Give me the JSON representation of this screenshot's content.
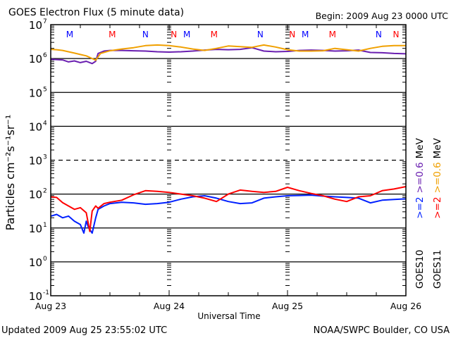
{
  "chart_data": {
    "type": "line",
    "title": "GOES Electron Flux (5 minute data)",
    "subtitle": "Begin: 2009 Aug 23 0000 UTC",
    "xlabel": "Universal Time",
    "ylabel": "Particles cm⁻²s⁻¹sr⁻¹",
    "x_range_days": [
      0,
      3
    ],
    "x_tick_labels": [
      "Aug 23",
      "Aug 24",
      "Aug 25",
      "Aug 26"
    ],
    "y_scale": "log",
    "ylim_exponents": [
      -1,
      7
    ],
    "y_tick_labels": [
      {
        "base": "10",
        "exp": "7"
      },
      {
        "base": "10",
        "exp": "6"
      },
      {
        "base": "10",
        "exp": "5"
      },
      {
        "base": "10",
        "exp": "4"
      },
      {
        "base": "10",
        "exp": "3"
      },
      {
        "base": "10",
        "exp": "2"
      },
      {
        "base": "10",
        "exp": "1"
      },
      {
        "base": "10",
        "exp": "0"
      },
      {
        "base": "10",
        "exp": "-1"
      }
    ],
    "dashed_threshold_exponent": 3,
    "markers": [
      {
        "label": "M",
        "color": "#0000ff",
        "day": 0.16
      },
      {
        "label": "M",
        "color": "#ff0000",
        "day": 0.52
      },
      {
        "label": "N",
        "color": "#0000ff",
        "day": 0.8
      },
      {
        "label": "N",
        "color": "#ff0000",
        "day": 1.04
      },
      {
        "label": "M",
        "color": "#0000ff",
        "day": 1.15
      },
      {
        "label": "M",
        "color": "#ff0000",
        "day": 1.38
      },
      {
        "label": "N",
        "color": "#0000ff",
        "day": 1.77
      },
      {
        "label": "N",
        "color": "#ff0000",
        "day": 2.04
      },
      {
        "label": "M",
        "color": "#0000ff",
        "day": 2.15
      },
      {
        "label": "M",
        "color": "#ff0000",
        "day": 2.38
      },
      {
        "label": "N",
        "color": "#0000ff",
        "day": 2.77
      },
      {
        "label": "N",
        "color": "#ff0000",
        "day": 3.04
      }
    ],
    "series": [
      {
        "name": "GOES10 >=0.6 MeV",
        "color": "#6a1fb0",
        "x_days": [
          0,
          0.05,
          0.1,
          0.15,
          0.2,
          0.25,
          0.3,
          0.35,
          0.38,
          0.4,
          0.45,
          0.5,
          0.6,
          0.7,
          0.8,
          0.9,
          1.0,
          1.1,
          1.2,
          1.3,
          1.4,
          1.5,
          1.6,
          1.7,
          1.8,
          1.9,
          2.0,
          2.1,
          2.2,
          2.3,
          2.4,
          2.5,
          2.6,
          2.7,
          2.8,
          2.9,
          3.0
        ],
        "log10_values": [
          5.98,
          5.97,
          5.96,
          5.9,
          5.93,
          5.88,
          5.92,
          5.85,
          5.92,
          6.15,
          6.22,
          6.24,
          6.24,
          6.23,
          6.22,
          6.2,
          6.19,
          6.2,
          6.22,
          6.25,
          6.27,
          6.26,
          6.27,
          6.32,
          6.22,
          6.2,
          6.21,
          6.24,
          6.25,
          6.24,
          6.22,
          6.23,
          6.25,
          6.18,
          6.17,
          6.15,
          6.14
        ]
      },
      {
        "name": "GOES11 >=0.6 MeV",
        "color": "#f0a000",
        "x_days": [
          0,
          0.05,
          0.1,
          0.15,
          0.2,
          0.25,
          0.3,
          0.35,
          0.38,
          0.42,
          0.5,
          0.6,
          0.7,
          0.8,
          0.9,
          1.0,
          1.1,
          1.2,
          1.3,
          1.4,
          1.5,
          1.6,
          1.7,
          1.8,
          1.9,
          2.0,
          2.1,
          2.2,
          2.3,
          2.4,
          2.5,
          2.6,
          2.7,
          2.8,
          2.9,
          3.0
        ],
        "log10_values": [
          6.27,
          6.26,
          6.24,
          6.2,
          6.16,
          6.12,
          6.08,
          6.0,
          5.95,
          6.15,
          6.23,
          6.28,
          6.32,
          6.38,
          6.4,
          6.38,
          6.34,
          6.28,
          6.24,
          6.3,
          6.37,
          6.35,
          6.33,
          6.4,
          6.34,
          6.26,
          6.22,
          6.22,
          6.23,
          6.3,
          6.26,
          6.22,
          6.3,
          6.36,
          6.38,
          6.38
        ]
      },
      {
        "name": "GOES10 >=2 MeV",
        "color": "#0020ff",
        "x_days": [
          0,
          0.05,
          0.1,
          0.15,
          0.2,
          0.25,
          0.28,
          0.3,
          0.32,
          0.35,
          0.38,
          0.4,
          0.45,
          0.5,
          0.6,
          0.7,
          0.8,
          0.9,
          1.0,
          1.1,
          1.2,
          1.3,
          1.4,
          1.5,
          1.6,
          1.7,
          1.8,
          1.9,
          2.0,
          2.1,
          2.2,
          2.3,
          2.4,
          2.5,
          2.6,
          2.7,
          2.8,
          2.9,
          3.0
        ],
        "log10_values": [
          1.35,
          1.4,
          1.3,
          1.35,
          1.2,
          1.1,
          0.85,
          1.2,
          1.0,
          0.85,
          1.3,
          1.55,
          1.65,
          1.72,
          1.76,
          1.74,
          1.7,
          1.72,
          1.76,
          1.85,
          1.92,
          1.95,
          1.88,
          1.78,
          1.72,
          1.74,
          1.88,
          1.92,
          1.95,
          1.96,
          1.97,
          1.94,
          1.92,
          1.9,
          1.88,
          1.74,
          1.82,
          1.84,
          1.86
        ]
      },
      {
        "name": "GOES11 >=2 MeV",
        "color": "#ff0000",
        "x_days": [
          0,
          0.05,
          0.1,
          0.15,
          0.2,
          0.25,
          0.3,
          0.33,
          0.35,
          0.38,
          0.4,
          0.45,
          0.5,
          0.6,
          0.7,
          0.8,
          0.9,
          1.0,
          1.1,
          1.2,
          1.3,
          1.4,
          1.5,
          1.6,
          1.7,
          1.8,
          1.9,
          2.0,
          2.1,
          2.2,
          2.3,
          2.4,
          2.5,
          2.6,
          2.7,
          2.8,
          2.9,
          3.0
        ],
        "log10_values": [
          1.92,
          1.9,
          1.75,
          1.65,
          1.55,
          1.6,
          1.45,
          0.9,
          1.5,
          1.65,
          1.58,
          1.72,
          1.76,
          1.82,
          1.98,
          2.1,
          2.08,
          2.05,
          2.0,
          1.95,
          1.88,
          1.78,
          2.0,
          2.12,
          2.08,
          2.05,
          2.08,
          2.2,
          2.1,
          2.02,
          1.95,
          1.85,
          1.78,
          1.92,
          1.95,
          2.1,
          2.15,
          2.22
        ]
      }
    ],
    "legend": [
      {
        "label": "GOES10",
        "color": "#000000"
      },
      {
        "label": ">=2",
        "color": "#0020ff"
      },
      {
        "label": ">=0.6",
        "color": "#6a1fb0"
      },
      {
        "label": "MeV",
        "color": "#000000"
      },
      {
        "label": "GOES11",
        "color": "#000000"
      },
      {
        "label": ">=2",
        "color": "#ff0000"
      },
      {
        "label": ">=0.6",
        "color": "#f0a000"
      },
      {
        "label": "MeV",
        "color": "#000000"
      }
    ],
    "legend_placement": "right-vertical"
  },
  "footer": {
    "updated": "Updated 2009 Aug 25 23:55:02 UTC",
    "credit": "NOAA/SWPC Boulder, CO USA"
  }
}
